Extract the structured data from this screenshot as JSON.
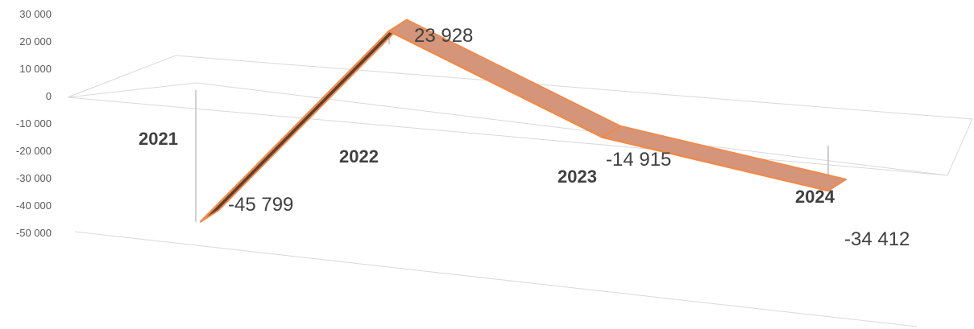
{
  "chart_data": {
    "type": "line",
    "style": "3d-ribbon",
    "title": "",
    "xlabel": "",
    "ylabel": "",
    "categories": [
      "2021",
      "2022",
      "2023",
      "2024"
    ],
    "series": [
      {
        "values": [
          -45799,
          23928,
          -14915,
          -34412
        ],
        "labels": [
          "-45 799",
          "23 928",
          "-14 915",
          "-34 412"
        ]
      }
    ],
    "ylim": [
      -50000,
      30000
    ],
    "yticks": [
      30000,
      20000,
      10000,
      0,
      -10000,
      -20000,
      -30000,
      -40000,
      -50000
    ],
    "ytick_labels": [
      "30 000",
      "20 000",
      "10 000",
      "0",
      "-10 000",
      "-20 000",
      "-30 000",
      "-40 000",
      "-50 000"
    ],
    "colors": {
      "ribbon": "#D4957A",
      "edge": "#F08A4B",
      "ribbon_side": "#5E4030",
      "gridline": "#D9D9D9",
      "axis_text": "#595959"
    },
    "grid": true,
    "legend": "none"
  }
}
